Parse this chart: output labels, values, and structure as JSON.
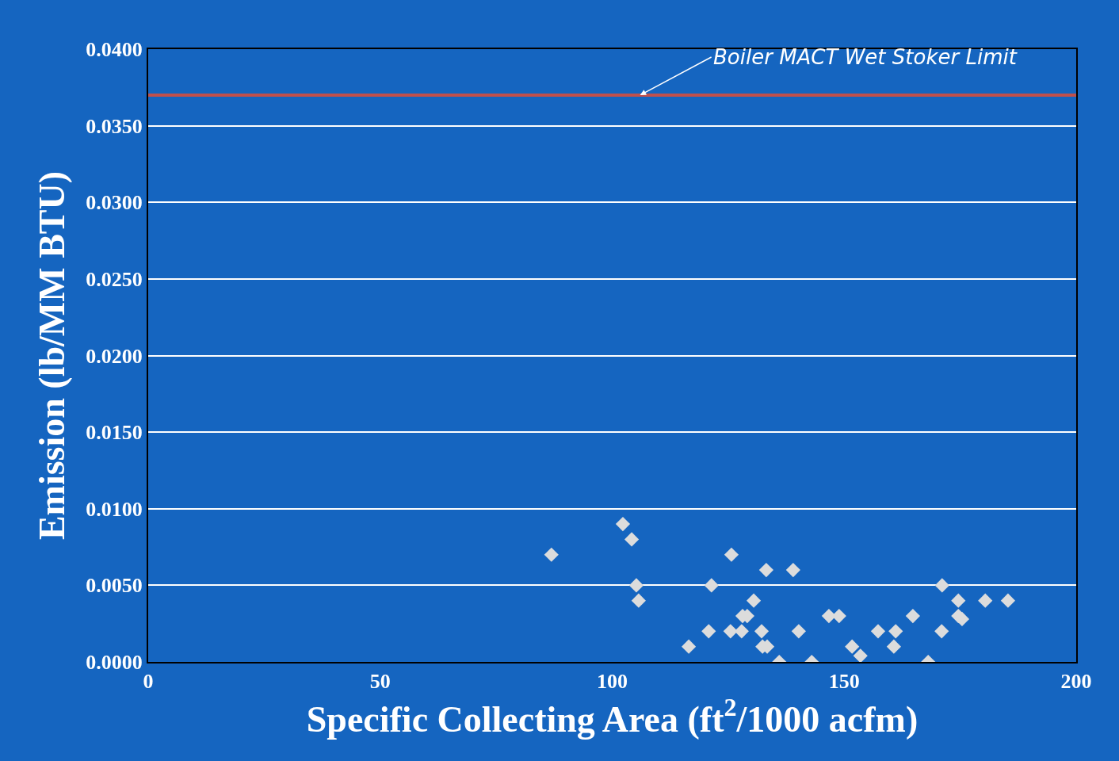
{
  "chart_data": {
    "type": "scatter",
    "xlabel": "Specific Collecting Area (ft$^{2}$/1000 acfm)",
    "ylabel": "Emission (lb/MM BTU)",
    "x": [
      86.9,
      102.3,
      104.2,
      105.2,
      105.7,
      116.5,
      120.8,
      121.4,
      125.7,
      125.5,
      127.9,
      128.1,
      129.1,
      130.5,
      132.2,
      133.2,
      132.4,
      133.4,
      136.0,
      139.0,
      140.2,
      143.0,
      146.7,
      148.9,
      151.7,
      153.5,
      157.3,
      161.1,
      160.7,
      164.8,
      168.1,
      171.1,
      171.0,
      174.6,
      174.6,
      175.4,
      180.4,
      185.3
    ],
    "values": [
      0.007,
      0.009,
      0.008,
      0.005,
      0.004,
      0.001,
      0.002,
      0.005,
      0.007,
      0.002,
      0.002,
      0.003,
      0.003,
      0.004,
      0.002,
      0.006,
      0.001,
      0.001,
      0.0,
      0.006,
      0.002,
      0.0,
      0.003,
      0.003,
      0.001,
      0.0004,
      0.002,
      0.002,
      0.001,
      0.003,
      0.0,
      0.005,
      0.002,
      0.004,
      0.003,
      0.0028,
      0.004,
      0.004
    ],
    "color": "#dcdcdc",
    "marker": "diamond",
    "xlim": [
      0,
      200
    ],
    "xticks": [
      0,
      50,
      100,
      150,
      200
    ],
    "ylim": [
      0,
      0.04
    ],
    "yticks": [
      {
        "value": 0,
        "label": "0.0000"
      },
      {
        "value": 0.005,
        "label": "0.0050"
      },
      {
        "value": 0.01,
        "label": "0.0100"
      },
      {
        "value": 0.015,
        "label": "0.0150"
      },
      {
        "value": 0.02,
        "label": "0.0200"
      },
      {
        "value": 0.025,
        "label": "0.0250"
      },
      {
        "value": 0.03,
        "label": "0.0300"
      },
      {
        "value": 0.035,
        "label": "0.0350"
      },
      {
        "value": 0.04,
        "label": "0.0400"
      }
    ],
    "grid": "y",
    "ref_lines": [
      {
        "axis": "y",
        "value": 0.037,
        "label": "Boiler MACT Wet Stoker Limit",
        "color": "#c0504d"
      }
    ]
  }
}
